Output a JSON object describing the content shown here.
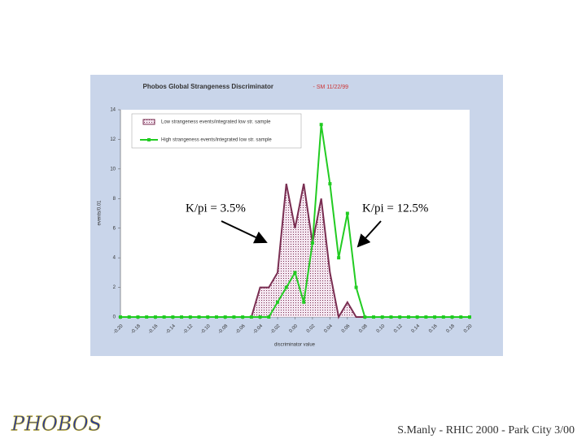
{
  "chart_data": {
    "type": "line",
    "title": "Phobos Global Strangeness Discriminator",
    "subtitle": "- SM 11/22/99",
    "x_label": "discriminator value",
    "y_label": "events/0.01",
    "x": [
      -0.2,
      -0.19,
      -0.18,
      -0.17,
      -0.16,
      -0.15,
      -0.14,
      -0.13,
      -0.12,
      -0.11,
      -0.1,
      -0.09,
      -0.08,
      -0.07,
      -0.06,
      -0.05,
      -0.04,
      -0.03,
      -0.02,
      -0.01,
      0,
      0.01,
      0.02,
      0.03,
      0.04,
      0.05,
      0.06,
      0.07,
      0.08,
      0.09,
      0.1,
      0.11,
      0.12,
      0.13,
      0.14,
      0.15,
      0.16,
      0.17,
      0.18,
      0.19,
      0.2
    ],
    "series": [
      {
        "name": "Low strangeness events/integrated low str. sample",
        "color": "#7a2e52",
        "fill": "area",
        "values": [
          0,
          0,
          0,
          0,
          0,
          0,
          0,
          0,
          0,
          0,
          0,
          0,
          0,
          0,
          0,
          0,
          2,
          2,
          3,
          9,
          6,
          9,
          5,
          8,
          3,
          0,
          1,
          0,
          0,
          0,
          0,
          0,
          0,
          0,
          0,
          0,
          0,
          0,
          0,
          0,
          0
        ]
      },
      {
        "name": "High strangeness events/integrated low str. sample",
        "color": "#22cc22",
        "marker": "square",
        "values": [
          0,
          0,
          0,
          0,
          0,
          0,
          0,
          0,
          0,
          0,
          0,
          0,
          0,
          0,
          0,
          0,
          0,
          0,
          1,
          2,
          3,
          1,
          5,
          13,
          9,
          4,
          7,
          2,
          0,
          0,
          0,
          0,
          0,
          0,
          0,
          0,
          0,
          0,
          0,
          0,
          0
        ]
      }
    ],
    "xlim": [
      -0.2,
      0.2
    ],
    "xticks": [
      {
        "value": -0.2,
        "label": "-0.20"
      },
      {
        "value": -0.18,
        "label": "-0.18"
      },
      {
        "value": -0.16,
        "label": "-0.16"
      },
      {
        "value": -0.14,
        "label": "-0.14"
      },
      {
        "value": -0.12,
        "label": "-0.12"
      },
      {
        "value": -0.1,
        "label": "-0.10"
      },
      {
        "value": -0.08,
        "label": "-0.08"
      },
      {
        "value": -0.06,
        "label": "-0.06"
      },
      {
        "value": -0.04,
        "label": "-0.04"
      },
      {
        "value": -0.02,
        "label": "-0.02"
      },
      {
        "value": 0,
        "label": "0.00"
      },
      {
        "value": 0.02,
        "label": "0.02"
      },
      {
        "value": 0.04,
        "label": "0.04"
      },
      {
        "value": 0.06,
        "label": "0.06"
      },
      {
        "value": 0.08,
        "label": "0.08"
      },
      {
        "value": 0.1,
        "label": "0.10"
      },
      {
        "value": 0.12,
        "label": "0.12"
      },
      {
        "value": 0.14,
        "label": "0.14"
      },
      {
        "value": 0.16,
        "label": "0.16"
      },
      {
        "value": 0.18,
        "label": "0.18"
      },
      {
        "value": 0.2,
        "label": "0.20"
      }
    ],
    "ylim": [
      0,
      14
    ],
    "yticks": [
      0,
      2,
      4,
      6,
      8,
      10,
      12,
      14
    ],
    "legend": "top-left",
    "annotations": [
      "K/pi = 3.5%",
      "K/pi = 12.5%"
    ]
  },
  "footer": "S.Manly - RHIC 2000 - Park City 3/00",
  "logo": "PHOBOS"
}
